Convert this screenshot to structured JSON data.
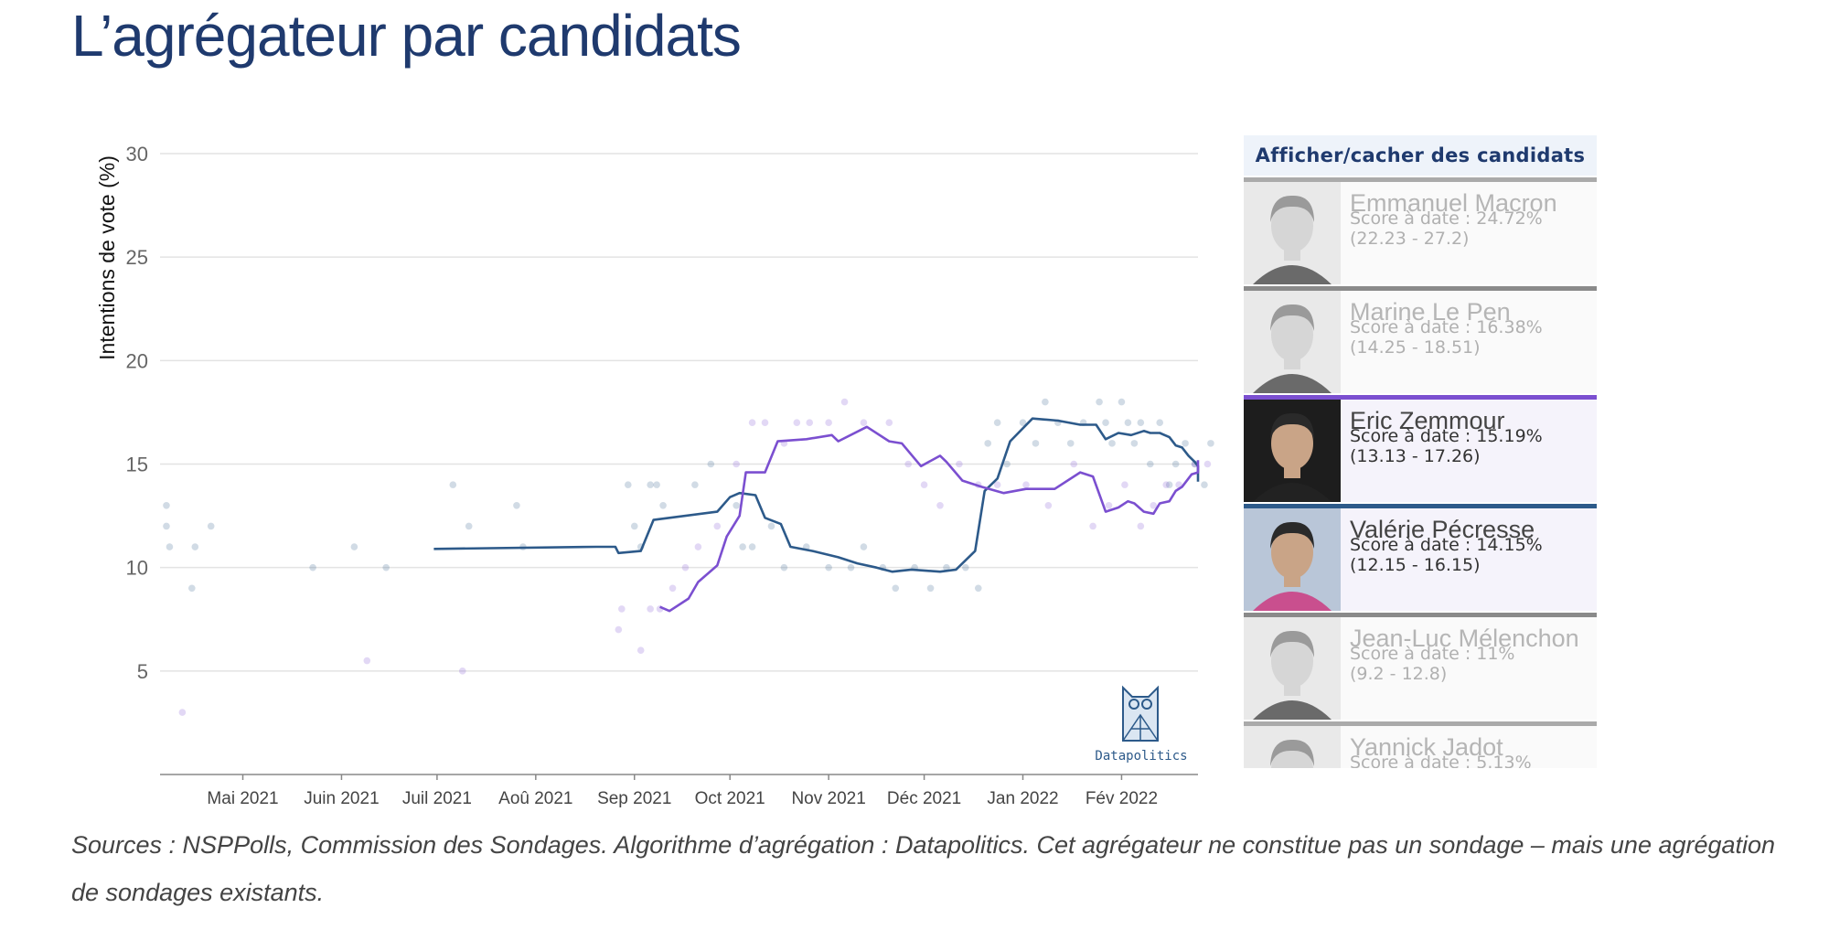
{
  "page": {
    "title": "L’agrégateur par candidats",
    "source": "Sources : NSPPolls, Commission des Sondages. Algorithme d’agrégation : Datapolitics. Cet agrégateur ne constitue pas un sondage – mais une agrégation de sondages existants."
  },
  "panel": {
    "header": "Afficher/cacher des candidats",
    "candidates": [
      {
        "name": "Emmanuel Macron",
        "score": "Score à date : 24.72%",
        "range": "(22.23 - 27.2)",
        "color": "#aaaaaa",
        "active": false,
        "icon": "macron-photo-icon"
      },
      {
        "name": "Marine Le Pen",
        "score": "Score à date : 16.38%",
        "range": "(14.25 - 18.51)",
        "color": "#8a8a8a",
        "active": false,
        "icon": "le-pen-photo-icon"
      },
      {
        "name": "Eric Zemmour",
        "score": "Score à date : 15.19%",
        "range": "(13.13 - 17.26)",
        "color": "#7b4fd0",
        "active": true,
        "icon": "zemmour-photo-icon"
      },
      {
        "name": "Valérie Pécresse",
        "score": "Score à date : 14.15%",
        "range": "(12.15 - 16.15)",
        "color": "#2d5a8a",
        "active": true,
        "icon": "pecresse-photo-icon"
      },
      {
        "name": "Jean-Luc Mélenchon",
        "score": "Score à date : 11%",
        "range": "(9.2 - 12.8)",
        "color": "#8a8a8a",
        "active": false,
        "icon": "melenchon-photo-icon"
      },
      {
        "name": "Yannick Jadot",
        "score": "Score à date : 5.13%",
        "range": "",
        "color": "#aaaaaa",
        "active": false,
        "icon": "jadot-photo-icon"
      }
    ]
  },
  "chart_data": {
    "type": "line",
    "title": "",
    "xlabel": "",
    "ylabel": "Intentions de vote (%)",
    "ylim": [
      0,
      30
    ],
    "yticks": [
      5,
      10,
      15,
      20,
      25,
      30
    ],
    "xlim": [
      "2021-04-05",
      "2022-02-25"
    ],
    "xticks": [
      {
        "label": "Mai 2021",
        "date": "2021-05-01"
      },
      {
        "label": "Juin 2021",
        "date": "2021-06-01"
      },
      {
        "label": "Juil 2021",
        "date": "2021-07-01"
      },
      {
        "label": "Aoû 2021",
        "date": "2021-08-01"
      },
      {
        "label": "Sep 2021",
        "date": "2021-09-01"
      },
      {
        "label": "Oct 2021",
        "date": "2021-10-01"
      },
      {
        "label": "Nov 2021",
        "date": "2021-11-01"
      },
      {
        "label": "Déc 2021",
        "date": "2021-12-01"
      },
      {
        "label": "Jan 2022",
        "date": "2022-01-01"
      },
      {
        "label": "Fév 2022",
        "date": "2022-02-01"
      }
    ],
    "grid": true,
    "watermark": "Datapolitics",
    "series": [
      {
        "name": "Valérie Pécresse",
        "color": "#2d5a8a",
        "points": [
          [
            "2021-06-30",
            10.9
          ],
          [
            "2021-08-20",
            11.0
          ],
          [
            "2021-08-26",
            11.0
          ],
          [
            "2021-08-27",
            10.7
          ],
          [
            "2021-09-03",
            10.8
          ],
          [
            "2021-09-07",
            12.3
          ],
          [
            "2021-09-27",
            12.7
          ],
          [
            "2021-10-01",
            13.4
          ],
          [
            "2021-10-04",
            13.6
          ],
          [
            "2021-10-09",
            13.5
          ],
          [
            "2021-10-12",
            12.4
          ],
          [
            "2021-10-17",
            12.1
          ],
          [
            "2021-10-20",
            11.0
          ],
          [
            "2021-10-27",
            10.8
          ],
          [
            "2021-11-04",
            10.5
          ],
          [
            "2021-11-10",
            10.2
          ],
          [
            "2021-11-16",
            10.0
          ],
          [
            "2021-11-21",
            9.8
          ],
          [
            "2021-11-27",
            9.9
          ],
          [
            "2021-12-06",
            9.8
          ],
          [
            "2021-12-11",
            9.9
          ],
          [
            "2021-12-17",
            10.8
          ],
          [
            "2021-12-20",
            13.7
          ],
          [
            "2021-12-24",
            14.3
          ],
          [
            "2021-12-28",
            16.1
          ],
          [
            "2022-01-04",
            17.2
          ],
          [
            "2022-01-12",
            17.1
          ],
          [
            "2022-01-19",
            16.9
          ],
          [
            "2022-01-24",
            16.9
          ],
          [
            "2022-01-27",
            16.2
          ],
          [
            "2022-01-31",
            16.5
          ],
          [
            "2022-02-04",
            16.4
          ],
          [
            "2022-02-08",
            16.6
          ],
          [
            "2022-02-10",
            16.5
          ],
          [
            "2022-02-13",
            16.5
          ],
          [
            "2022-02-16",
            16.3
          ],
          [
            "2022-02-18",
            15.9
          ],
          [
            "2022-02-20",
            15.8
          ],
          [
            "2022-02-22",
            15.4
          ],
          [
            "2022-02-24",
            15.1
          ],
          [
            "2022-02-25",
            14.9
          ],
          [
            "2022-02-27",
            14.5
          ],
          [
            "2022-03-01",
            14.2
          ],
          [
            "2022-03-03",
            14.15
          ]
        ]
      },
      {
        "name": "Eric Zemmour",
        "color": "#7b4fd0",
        "points": [
          [
            "2021-09-09",
            8.1
          ],
          [
            "2021-09-12",
            7.9
          ],
          [
            "2021-09-18",
            8.5
          ],
          [
            "2021-09-21",
            9.3
          ],
          [
            "2021-09-27",
            10.1
          ],
          [
            "2021-09-30",
            11.5
          ],
          [
            "2021-10-04",
            12.5
          ],
          [
            "2021-10-06",
            14.6
          ],
          [
            "2021-10-12",
            14.6
          ],
          [
            "2021-10-16",
            16.1
          ],
          [
            "2021-10-25",
            16.2
          ],
          [
            "2021-11-02",
            16.4
          ],
          [
            "2021-11-04",
            16.1
          ],
          [
            "2021-11-13",
            16.8
          ],
          [
            "2021-11-20",
            16.1
          ],
          [
            "2021-11-24",
            16.0
          ],
          [
            "2021-11-30",
            14.9
          ],
          [
            "2021-12-06",
            15.4
          ],
          [
            "2021-12-08",
            15.1
          ],
          [
            "2021-12-13",
            14.2
          ],
          [
            "2021-12-19",
            13.9
          ],
          [
            "2021-12-26",
            13.6
          ],
          [
            "2022-01-02",
            13.8
          ],
          [
            "2022-01-11",
            13.8
          ],
          [
            "2022-01-19",
            14.6
          ],
          [
            "2022-01-23",
            14.4
          ],
          [
            "2022-01-27",
            12.7
          ],
          [
            "2022-01-31",
            12.9
          ],
          [
            "2022-02-03",
            13.2
          ],
          [
            "2022-02-05",
            13.1
          ],
          [
            "2022-02-08",
            12.7
          ],
          [
            "2022-02-11",
            12.6
          ],
          [
            "2022-02-13",
            13.1
          ],
          [
            "2022-02-16",
            13.2
          ],
          [
            "2022-02-18",
            13.7
          ],
          [
            "2022-02-20",
            13.9
          ],
          [
            "2022-02-23",
            14.5
          ],
          [
            "2022-02-26",
            14.6
          ],
          [
            "2022-02-28",
            14.7
          ],
          [
            "2022-03-01",
            15.1
          ],
          [
            "2022-03-03",
            15.19
          ]
        ]
      }
    ],
    "polls": [
      {
        "series": "Valérie Pécresse",
        "values": [
          [
            "2021-04-07",
            13
          ],
          [
            "2021-04-07",
            12
          ],
          [
            "2021-04-08",
            11
          ],
          [
            "2021-04-15",
            9
          ],
          [
            "2021-04-16",
            11
          ],
          [
            "2021-04-21",
            12
          ],
          [
            "2021-05-23",
            10
          ],
          [
            "2021-06-05",
            11
          ],
          [
            "2021-06-15",
            10
          ],
          [
            "2021-07-06",
            14
          ],
          [
            "2021-07-11",
            12
          ],
          [
            "2021-07-26",
            13
          ],
          [
            "2021-07-28",
            11
          ],
          [
            "2021-08-30",
            14
          ],
          [
            "2021-09-01",
            12
          ],
          [
            "2021-09-03",
            11
          ],
          [
            "2021-09-06",
            14
          ],
          [
            "2021-09-08",
            14
          ],
          [
            "2021-09-10",
            13
          ],
          [
            "2021-09-20",
            14
          ],
          [
            "2021-09-25",
            15
          ],
          [
            "2021-10-03",
            13
          ],
          [
            "2021-10-05",
            11
          ],
          [
            "2021-10-08",
            11
          ],
          [
            "2021-10-14",
            12
          ],
          [
            "2021-10-18",
            10
          ],
          [
            "2021-10-25",
            11
          ],
          [
            "2021-11-01",
            10
          ],
          [
            "2021-11-08",
            10
          ],
          [
            "2021-11-12",
            11
          ],
          [
            "2021-11-18",
            10
          ],
          [
            "2021-11-22",
            9
          ],
          [
            "2021-11-28",
            10
          ],
          [
            "2021-12-03",
            9
          ],
          [
            "2021-12-08",
            10
          ],
          [
            "2021-12-14",
            10
          ],
          [
            "2021-12-18",
            9
          ],
          [
            "2021-12-21",
            16
          ],
          [
            "2021-12-24",
            17
          ],
          [
            "2021-12-27",
            15
          ],
          [
            "2022-01-01",
            17
          ],
          [
            "2022-01-05",
            16
          ],
          [
            "2022-01-08",
            18
          ],
          [
            "2022-01-12",
            17
          ],
          [
            "2022-01-16",
            16
          ],
          [
            "2022-01-20",
            17
          ],
          [
            "2022-01-25",
            18
          ],
          [
            "2022-01-27",
            17
          ],
          [
            "2022-01-29",
            16
          ],
          [
            "2022-02-01",
            18
          ],
          [
            "2022-02-03",
            17
          ],
          [
            "2022-02-05",
            16
          ],
          [
            "2022-02-07",
            17
          ],
          [
            "2022-02-10",
            15
          ],
          [
            "2022-02-13",
            17
          ],
          [
            "2022-02-16",
            14
          ],
          [
            "2022-02-18",
            15
          ],
          [
            "2022-02-21",
            16
          ],
          [
            "2022-02-24",
            15
          ],
          [
            "2022-02-27",
            14
          ],
          [
            "2022-03-01",
            16
          ]
        ]
      },
      {
        "series": "Eric Zemmour",
        "values": [
          [
            "2021-06-09",
            5.5
          ],
          [
            "2021-07-09",
            5
          ],
          [
            "2021-04-12",
            3
          ],
          [
            "2021-08-27",
            7
          ],
          [
            "2021-08-28",
            8
          ],
          [
            "2021-09-03",
            6
          ],
          [
            "2021-09-06",
            8
          ],
          [
            "2021-09-09",
            8
          ],
          [
            "2021-09-13",
            9
          ],
          [
            "2021-09-17",
            10
          ],
          [
            "2021-09-21",
            11
          ],
          [
            "2021-09-27",
            12
          ],
          [
            "2021-10-03",
            15
          ],
          [
            "2021-10-08",
            17
          ],
          [
            "2021-10-12",
            17
          ],
          [
            "2021-10-18",
            16
          ],
          [
            "2021-10-22",
            17
          ],
          [
            "2021-10-26",
            17
          ],
          [
            "2021-11-01",
            17
          ],
          [
            "2021-11-06",
            18
          ],
          [
            "2021-11-12",
            17
          ],
          [
            "2021-11-20",
            17
          ],
          [
            "2021-11-26",
            15
          ],
          [
            "2021-12-01",
            14
          ],
          [
            "2021-12-06",
            13
          ],
          [
            "2021-12-12",
            15
          ],
          [
            "2021-12-18",
            14
          ],
          [
            "2021-12-24",
            14
          ],
          [
            "2022-01-02",
            14
          ],
          [
            "2022-01-09",
            13
          ],
          [
            "2022-01-17",
            15
          ],
          [
            "2022-01-23",
            12
          ],
          [
            "2022-01-28",
            13
          ],
          [
            "2022-02-02",
            14
          ],
          [
            "2022-02-07",
            12
          ],
          [
            "2022-02-11",
            13
          ],
          [
            "2022-02-15",
            14
          ],
          [
            "2022-02-19",
            14
          ],
          [
            "2022-02-24",
            15
          ],
          [
            "2022-02-28",
            15
          ]
        ]
      }
    ]
  }
}
